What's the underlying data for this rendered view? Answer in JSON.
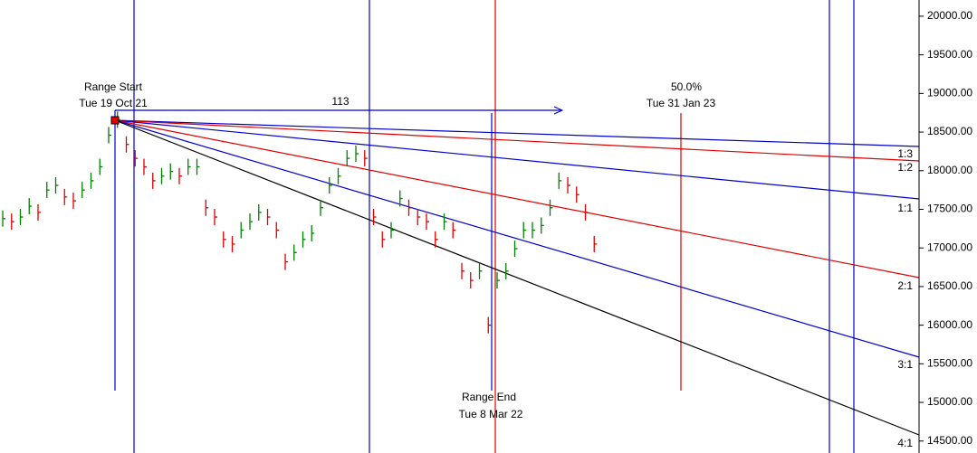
{
  "chart_data": {
    "type": "price-bars",
    "ylim": [
      14345,
      20210
    ],
    "yticks": [
      {
        "value": 14500,
        "label": "14500.00"
      },
      {
        "value": 15000,
        "label": "15000.00"
      },
      {
        "value": 15500,
        "label": "15500.00"
      },
      {
        "value": 16000,
        "label": "16000.00"
      },
      {
        "value": 16500,
        "label": "16500.00"
      },
      {
        "value": 17000,
        "label": "17000.00"
      },
      {
        "value": 17500,
        "label": "17500.00"
      },
      {
        "value": 18000,
        "label": "18000.00"
      },
      {
        "value": 18500,
        "label": "18500.00"
      },
      {
        "value": 19000,
        "label": "19000.00"
      },
      {
        "value": 19500,
        "label": "19500.00"
      },
      {
        "value": 20000,
        "label": "20000.00"
      }
    ],
    "values": [
      17380,
      17340,
      17400,
      17540,
      17460,
      17750,
      17810,
      17660,
      17610,
      17750,
      17870,
      18050,
      18460,
      18660,
      18340,
      18160,
      18050,
      17870,
      17930,
      17990,
      17930,
      18050,
      18050,
      17520,
      17400,
      17110,
      17050,
      17230,
      17340,
      17460,
      17400,
      17230,
      16820,
      16940,
      17110,
      17190,
      17520,
      17810,
      17930,
      18160,
      18220,
      18160,
      17400,
      17110,
      17230,
      17640,
      17520,
      17400,
      17340,
      17110,
      17340,
      17230,
      16700,
      16580,
      16700,
      16000,
      16580,
      16700,
      16990,
      17230,
      17230,
      17290,
      17520,
      17870,
      17810,
      17690,
      17460,
      17050
    ],
    "up_color": "#008000",
    "down_color": "#e00000",
    "annotations": {
      "range_start": "Range Start",
      "start_date": "Tue 19 Oct 21",
      "bars_count": "113",
      "percent": "50.0%",
      "mid_date": "Tue 31 Jan 23",
      "range_end": "Range End",
      "end_date": "Tue 8 Mar 22"
    },
    "fan_labels": [
      "1:3",
      "1:2",
      "1:1",
      "2:1",
      "3:1",
      "4:1"
    ]
  }
}
